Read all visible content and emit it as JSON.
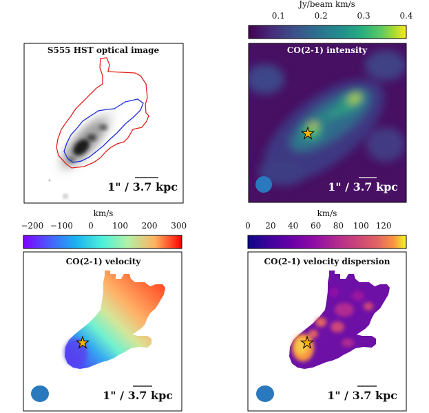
{
  "figure": {
    "panels": {
      "optical": {
        "title": "S555 HST optical image",
        "scalebar_arcsec": "1\"",
        "scalebar_sep": " / ",
        "scalebar_kpc": "3.7 kpc"
      },
      "intensity": {
        "title": "CO(2-1) intensity",
        "scalebar_arcsec": "1\"",
        "scalebar_sep": " / ",
        "scalebar_kpc": "3.7 kpc",
        "beam": "beam-ellipse"
      },
      "velocity": {
        "title": "CO(2-1) velocity",
        "scalebar_arcsec": "1\"",
        "scalebar_sep": " / ",
        "scalebar_kpc": "3.7 kpc",
        "beam": "beam-ellipse"
      },
      "dispersion": {
        "title": "CO(2-1) velocity dispersion",
        "scalebar_arcsec": "1\"",
        "scalebar_sep": " / ",
        "scalebar_kpc": "3.7 kpc",
        "beam": "beam-ellipse"
      }
    },
    "colorbars": {
      "intensity": {
        "unit": "Jy/beam km/s",
        "min": 0.03,
        "max": 0.4,
        "ticks": [
          "0.1",
          "0.2",
          "0.3",
          "0.4"
        ],
        "tick_values": [
          0.1,
          0.2,
          0.3,
          0.4
        ],
        "colormap": "viridis"
      },
      "velocity": {
        "unit": "km/s",
        "min": -230,
        "max": 310,
        "ticks": [
          "−200",
          "−100",
          "0",
          "100",
          "200",
          "300"
        ],
        "tick_values": [
          -200,
          -100,
          0,
          100,
          200,
          300
        ],
        "colormap": "rainbow"
      },
      "dispersion": {
        "unit": "km/s",
        "min": 0,
        "max": 140,
        "ticks": [
          "0",
          "20",
          "40",
          "60",
          "80",
          "100",
          "120"
        ],
        "tick_values": [
          0,
          20,
          40,
          60,
          80,
          100,
          120
        ],
        "colormap": "plasma"
      }
    },
    "colors": {
      "star": "#f7b500",
      "beam": "#2a78bd",
      "outer_contour": "#e0201b",
      "inner_contour": "#1a2bd6",
      "intensity_bg": "#471063"
    }
  }
}
